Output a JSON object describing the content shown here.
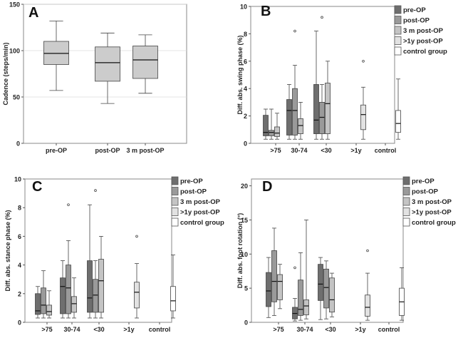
{
  "chart_data": [
    {
      "type": "box",
      "panel": "A",
      "ylabel": "Cadence (steps/min)",
      "ylim": [
        0,
        150
      ],
      "yticks": [
        0,
        50,
        100,
        150
      ],
      "grid_y": [
        50,
        100,
        150
      ],
      "categories": [
        "pre-OP",
        "post-OP",
        "3 m post-OP"
      ],
      "series": [
        {
          "color": "#cccccc",
          "boxes": [
            {
              "min": 57,
              "q1": 85,
              "median": 97,
              "q3": 110,
              "max": 132
            },
            {
              "min": 43,
              "q1": 67,
              "median": 87,
              "q3": 104,
              "max": 119
            },
            {
              "min": 54,
              "q1": 70,
              "median": 90,
              "q3": 105,
              "max": 117
            }
          ]
        }
      ]
    },
    {
      "type": "box",
      "panel": "B",
      "ylabel": "Diff. abs. swing phase (%)",
      "ylim": [
        0,
        10
      ],
      "yticks": [
        0,
        2,
        4,
        6,
        8,
        10
      ],
      "categories": [
        ">75",
        "30-74",
        "<30",
        ">1y",
        "control"
      ],
      "legend": [
        "pre-OP",
        "post-OP",
        "3 m post-OP",
        ">1y post-OP",
        "control group"
      ],
      "series": [
        {
          "color": "#6e6e6e",
          "boxes": [
            {
              "min": 0.3,
              "q1": 0.55,
              "median": 0.8,
              "q3": 2.05,
              "max": 2.5
            },
            {
              "min": 0.3,
              "q1": 0.6,
              "median": 2.4,
              "q3": 3.2,
              "max": 4.3
            },
            {
              "min": 0.3,
              "q1": 0.7,
              "median": 1.7,
              "q3": 4.3,
              "max": 8.2
            }
          ]
        },
        {
          "color": "#9a9a9a",
          "boxes": [
            {
              "min": 0.3,
              "q1": 0.55,
              "median": 0.8,
              "q3": 0.95,
              "max": 2.5
            },
            {
              "min": 0.3,
              "q1": 0.6,
              "median": 2.4,
              "q3": 4.0,
              "max": 5.7,
              "outliers": [
                8.2
              ]
            },
            {
              "min": 0.3,
              "q1": 0.7,
              "median": 1.9,
              "q3": 3.0,
              "max": 4.3,
              "outliers": [
                9.2
              ]
            }
          ]
        },
        {
          "color": "#c4c4c4",
          "boxes": [
            {
              "min": 0.3,
              "q1": 0.5,
              "median": 0.75,
              "q3": 1.2,
              "max": 2.2
            },
            {
              "min": 0.3,
              "q1": 0.7,
              "median": 1.3,
              "q3": 1.8,
              "max": 3.0
            },
            {
              "min": 0.3,
              "q1": 0.7,
              "median": 2.9,
              "q3": 4.4,
              "max": 6.0
            }
          ]
        },
        {
          "color": "#e2e2e2",
          "boxes": [
            null,
            null,
            null,
            {
              "min": 0.3,
              "q1": 1.0,
              "median": 2.1,
              "q3": 2.8,
              "max": 4.1,
              "outliers": [
                6.0
              ]
            }
          ]
        },
        {
          "color": "#ffffff",
          "boxes": [
            null,
            null,
            null,
            null,
            {
              "min": 0.3,
              "q1": 0.8,
              "median": 1.45,
              "q3": 2.4,
              "max": 4.7
            }
          ]
        }
      ]
    },
    {
      "type": "box",
      "panel": "C",
      "ylabel": "Diff. abs. stance phase (%)",
      "ylim": [
        0,
        10
      ],
      "yticks": [
        0,
        2,
        4,
        6,
        8,
        10
      ],
      "categories": [
        ">75",
        "30-74",
        "<30",
        ">1y",
        "control"
      ],
      "legend": [
        "pre-OP",
        "post-OP",
        "3 m post-OP",
        ">1y post-OP",
        "control group"
      ],
      "series": [
        {
          "color": "#6e6e6e",
          "boxes": [
            {
              "min": 0.3,
              "q1": 0.55,
              "median": 0.8,
              "q3": 2.0,
              "max": 2.5
            },
            {
              "min": 0.3,
              "q1": 0.6,
              "median": 2.5,
              "q3": 3.1,
              "max": 4.3
            },
            {
              "min": 0.3,
              "q1": 0.7,
              "median": 1.7,
              "q3": 4.3,
              "max": 8.2
            }
          ]
        },
        {
          "color": "#9a9a9a",
          "boxes": [
            {
              "min": 0.3,
              "q1": 0.6,
              "median": 1.2,
              "q3": 2.4,
              "max": 3.6
            },
            {
              "min": 0.3,
              "q1": 0.6,
              "median": 2.4,
              "q3": 4.0,
              "max": 5.7,
              "outliers": [
                8.2
              ]
            },
            {
              "min": 0.3,
              "q1": 0.7,
              "median": 1.9,
              "q3": 3.0,
              "max": 4.3,
              "outliers": [
                9.2
              ]
            }
          ]
        },
        {
          "color": "#c4c4c4",
          "boxes": [
            {
              "min": 0.3,
              "q1": 0.5,
              "median": 0.75,
              "q3": 1.2,
              "max": 2.2
            },
            {
              "min": 0.3,
              "q1": 0.7,
              "median": 1.3,
              "q3": 1.8,
              "max": 3.1
            },
            {
              "min": 0.3,
              "q1": 0.7,
              "median": 2.9,
              "q3": 4.4,
              "max": 6.0
            }
          ]
        },
        {
          "color": "#e2e2e2",
          "boxes": [
            null,
            null,
            null,
            {
              "min": 0.3,
              "q1": 1.0,
              "median": 2.1,
              "q3": 2.8,
              "max": 4.1,
              "outliers": [
                6.0
              ]
            }
          ]
        },
        {
          "color": "#ffffff",
          "boxes": [
            null,
            null,
            null,
            null,
            {
              "min": 0.3,
              "q1": 0.8,
              "median": 1.5,
              "q3": 2.5,
              "max": 4.7
            }
          ]
        }
      ]
    },
    {
      "type": "box",
      "panel": "D",
      "ylabel": "Diff. abs. foot rotation (°)",
      "ylim": [
        0,
        21
      ],
      "yticks": [
        0,
        5,
        10,
        15,
        20
      ],
      "categories": [
        ">75",
        "30-74",
        "<30",
        ">1y",
        "control"
      ],
      "legend": [
        "pre-OP",
        "post-OP",
        "3 m post-OP",
        ">1y post-OP",
        "control group"
      ],
      "series": [
        {
          "color": "#6e6e6e",
          "boxes": [
            {
              "min": 0.7,
              "q1": 2.3,
              "median": 4.6,
              "q3": 7.3,
              "max": 9.5
            },
            {
              "min": 0.2,
              "q1": 0.5,
              "median": 1.3,
              "q3": 2.2,
              "max": 3.5,
              "outliers": [
                8.0
              ]
            },
            {
              "min": 0.4,
              "q1": 3.2,
              "median": 5.6,
              "q3": 8.5,
              "max": 9.5
            }
          ]
        },
        {
          "color": "#9a9a9a",
          "boxes": [
            {
              "min": 1.0,
              "q1": 3.0,
              "median": 6.0,
              "q3": 10.5,
              "max": 13.8
            },
            {
              "min": 0.3,
              "q1": 1.0,
              "median": 1.9,
              "q3": 6.2,
              "max": 10.2
            },
            {
              "min": 0.5,
              "q1": 2.1,
              "median": 5.1,
              "q3": 7.8,
              "max": 9.0
            }
          ]
        },
        {
          "color": "#c4c4c4",
          "boxes": [
            {
              "min": 2.0,
              "q1": 3.3,
              "median": 6.0,
              "q3": 7.0,
              "max": 8.5
            },
            {
              "min": 0.5,
              "q1": 1.1,
              "median": 2.4,
              "q3": 3.3,
              "max": 15.0
            },
            {
              "min": 0.8,
              "q1": 1.5,
              "median": 3.3,
              "q3": 6.5,
              "max": 7.2
            }
          ]
        },
        {
          "color": "#e2e2e2",
          "boxes": [
            null,
            null,
            null,
            {
              "min": 0.3,
              "q1": 0.9,
              "median": 2.2,
              "q3": 4.0,
              "max": 7.2,
              "outliers": [
                10.5
              ]
            }
          ]
        },
        {
          "color": "#ffffff",
          "boxes": [
            null,
            null,
            null,
            null,
            {
              "min": 0.3,
              "q1": 1.0,
              "median": 3.0,
              "q3": 5.0,
              "max": 8.0
            }
          ]
        }
      ]
    }
  ]
}
